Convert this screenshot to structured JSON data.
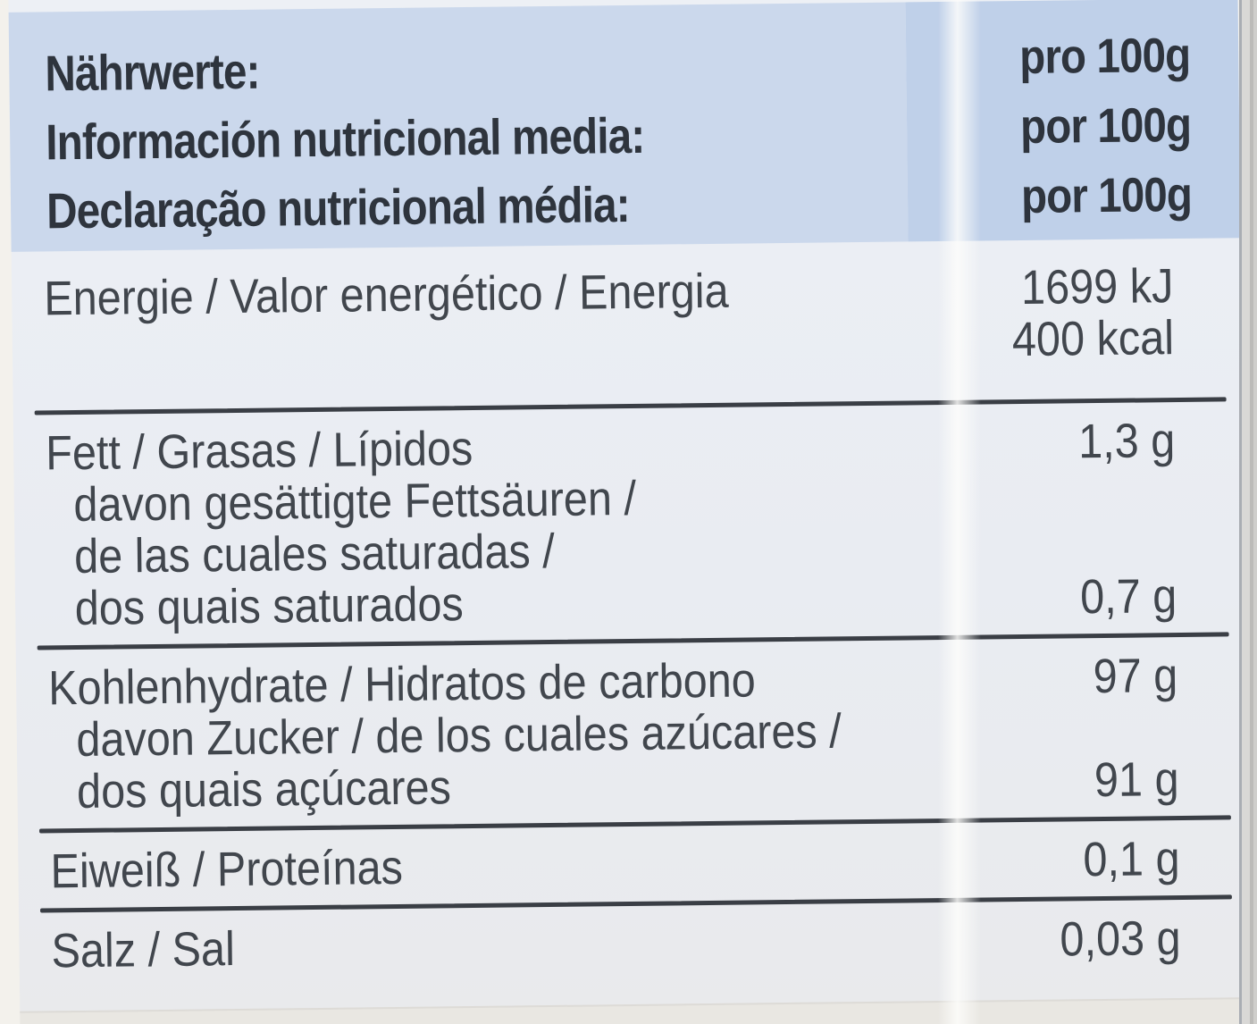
{
  "header": {
    "rows": [
      {
        "title": "Nährwerte:",
        "amount": "pro 100g"
      },
      {
        "title": "Información nutricional media:",
        "amount": "por 100g"
      },
      {
        "title": "Declaração nutricional média:",
        "amount": "por 100g"
      }
    ]
  },
  "table": {
    "groups": [
      {
        "lines": [
          {
            "label": "Energie / Valor energético / Energia",
            "value": "1699 kJ"
          },
          {
            "label": "",
            "value": "400 kcal"
          }
        ]
      },
      {
        "lines": [
          {
            "label": "Fett / Grasas / Lípidos",
            "value": "1,3 g"
          },
          {
            "label": "davon gesättigte Fettsäuren /",
            "value": ""
          },
          {
            "label": "de las cuales saturadas /",
            "value": ""
          },
          {
            "label": "dos quais saturados",
            "value": "0,7 g"
          }
        ]
      },
      {
        "lines": [
          {
            "label": "Kohlenhydrate / Hidratos de carbono",
            "value": "97 g"
          },
          {
            "label": "davon Zucker / de los cuales azúcares /",
            "value": ""
          },
          {
            "label": "dos quais açúcares",
            "value": "91 g"
          }
        ]
      },
      {
        "lines": [
          {
            "label": "Eiweiß / Proteínas",
            "value": "0,1 g"
          }
        ]
      },
      {
        "lines": [
          {
            "label": "Salz / Sal",
            "value": "0,03 g"
          }
        ]
      }
    ]
  },
  "colors": {
    "header_blue_left": "#cbd8ec",
    "header_blue_right": "#bfd0e9",
    "body_background": "#e9ecf2",
    "divider": "#3a3e45",
    "text": "#41464d",
    "header_text": "#2e343d"
  }
}
